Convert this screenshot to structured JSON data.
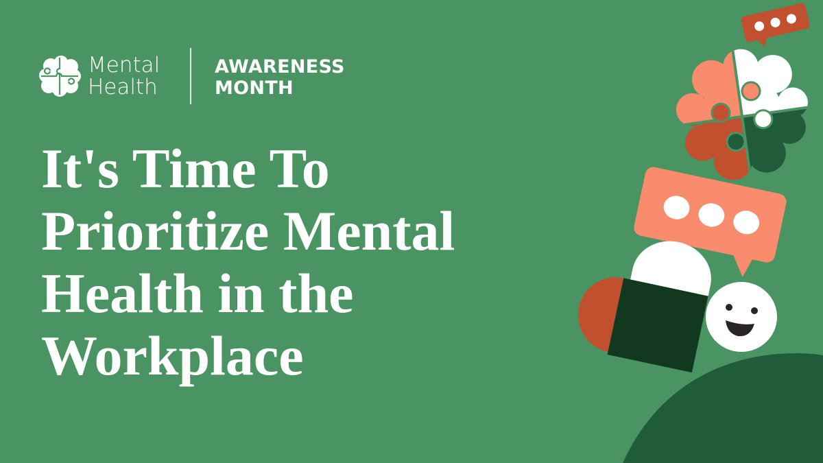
{
  "logo": {
    "line1": "Mental",
    "line2": "Health"
  },
  "badge": {
    "line1": "AWARENESS",
    "line2": "MONTH"
  },
  "headline": [
    "It's Time To",
    "Prioritize Mental",
    "Health in the",
    "Workplace"
  ],
  "colors": {
    "background": "#4A9464",
    "dark_green": "#215C3A",
    "deep_green": "#12381F",
    "salmon": "#F98C6C",
    "rust": "#C2502E",
    "white": "#FFFFFF"
  },
  "illustration": {
    "icons": [
      "chat-bubble-small",
      "puzzle-brain",
      "chat-bubble-large",
      "pill",
      "smiley-face",
      "hill"
    ]
  }
}
